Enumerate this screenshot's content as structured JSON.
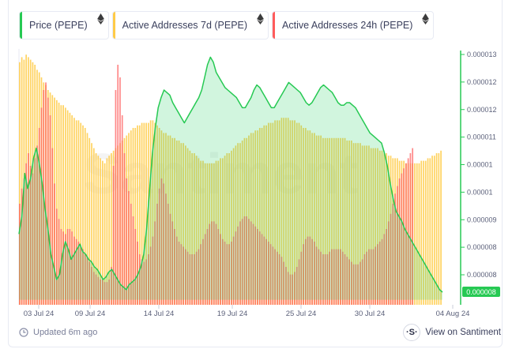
{
  "legend": [
    {
      "label": "Price (PEPE)",
      "color": "#26c953",
      "icon": "ethereum-icon"
    },
    {
      "label": "Active Addresses 7d (PEPE)",
      "color": "#ffcb47",
      "icon": "ethereum-icon"
    },
    {
      "label": "Active Addresses 24h (PEPE)",
      "color": "#ff5b5b",
      "icon": "ethereum-icon"
    }
  ],
  "watermark": "Santiment",
  "footer": {
    "updated": "Updated 6m ago",
    "view_label": "View on Santiment",
    "logo": "·S·"
  },
  "chart_data": {
    "type": "bar+line",
    "x_tick_labels": [
      "03 Jul 24",
      "09 Jul 24",
      "14 Jul 24",
      "19 Jul 24",
      "25 Jul 24",
      "30 Jul 24",
      "04 Aug 24"
    ],
    "y_tick_labels_price": [
      "0.000013",
      "0.000012",
      "0.000012",
      "0.000011",
      "0.00001",
      "0.00001",
      "0.000009",
      "0.000008",
      "0.000008"
    ],
    "current_price_label": "0.000008",
    "ylim_price": [
      7.7e-06,
      1.31e-05
    ],
    "active_addresses_7d_relative": [
      0.96,
      0.98,
      0.97,
      0.99,
      0.98,
      0.97,
      0.96,
      0.95,
      0.93,
      0.92,
      0.9,
      0.88,
      0.87,
      0.85,
      0.84,
      0.83,
      0.82,
      0.81,
      0.8,
      0.79,
      0.79,
      0.78,
      0.77,
      0.76,
      0.75,
      0.74,
      0.73,
      0.73,
      0.72,
      0.71,
      0.7,
      0.68,
      0.66,
      0.64,
      0.62,
      0.6,
      0.59,
      0.58,
      0.57,
      0.56,
      0.58,
      0.59,
      0.6,
      0.61,
      0.62,
      0.63,
      0.64,
      0.65,
      0.66,
      0.67,
      0.68,
      0.69,
      0.7,
      0.7,
      0.71,
      0.71,
      0.72,
      0.72,
      0.72,
      0.72,
      0.73,
      0.73,
      0.72,
      0.71,
      0.7,
      0.69,
      0.68,
      0.68,
      0.67,
      0.67,
      0.66,
      0.66,
      0.65,
      0.65,
      0.64,
      0.64,
      0.63,
      0.62,
      0.61,
      0.6,
      0.6,
      0.59,
      0.58,
      0.57,
      0.57,
      0.56,
      0.56,
      0.56,
      0.56,
      0.56,
      0.57,
      0.57,
      0.58,
      0.58,
      0.59,
      0.6,
      0.6,
      0.61,
      0.62,
      0.63,
      0.64,
      0.64,
      0.65,
      0.66,
      0.66,
      0.67,
      0.68,
      0.68,
      0.69,
      0.69,
      0.7,
      0.7,
      0.71,
      0.71,
      0.72,
      0.72,
      0.72,
      0.73,
      0.73,
      0.73,
      0.74,
      0.74,
      0.74,
      0.74,
      0.73,
      0.73,
      0.73,
      0.72,
      0.72,
      0.71,
      0.7,
      0.7,
      0.69,
      0.69,
      0.68,
      0.68,
      0.67,
      0.67,
      0.67,
      0.66,
      0.66,
      0.66,
      0.66,
      0.66,
      0.66,
      0.66,
      0.66,
      0.66,
      0.66,
      0.66,
      0.65,
      0.65,
      0.65,
      0.64,
      0.64,
      0.64,
      0.64,
      0.63,
      0.63,
      0.63,
      0.63,
      0.62,
      0.62,
      0.62,
      0.62,
      0.61,
      0.61,
      0.6,
      0.6,
      0.59,
      0.59,
      0.58,
      0.58,
      0.58,
      0.57,
      0.57,
      0.57,
      0.56,
      0.56,
      0.56,
      0.56,
      0.56,
      0.56,
      0.56,
      0.57,
      0.57,
      0.57,
      0.58,
      0.58,
      0.59,
      0.59,
      0.6,
      0.6,
      0.61
    ],
    "active_addresses_24h_relative": [
      0.4,
      0.46,
      0.5,
      0.56,
      0.6,
      0.55,
      0.52,
      0.58,
      0.63,
      0.7,
      0.78,
      0.85,
      0.88,
      0.82,
      0.75,
      0.62,
      0.48,
      0.38,
      0.34,
      0.3,
      0.29,
      0.28,
      0.3,
      0.3,
      0.29,
      0.27,
      0.26,
      0.25,
      0.23,
      0.22,
      0.2,
      0.19,
      0.17,
      0.15,
      0.13,
      0.12,
      0.11,
      0.1,
      0.1,
      0.09,
      0.09,
      0.1,
      0.15,
      0.55,
      0.85,
      0.95,
      0.9,
      0.75,
      0.6,
      0.5,
      0.45,
      0.4,
      0.35,
      0.3,
      0.25,
      0.2,
      0.18,
      0.17,
      0.18,
      0.2,
      0.23,
      0.27,
      0.33,
      0.4,
      0.46,
      0.5,
      0.48,
      0.44,
      0.4,
      0.36,
      0.33,
      0.3,
      0.27,
      0.25,
      0.24,
      0.23,
      0.22,
      0.21,
      0.2,
      0.2,
      0.2,
      0.21,
      0.22,
      0.24,
      0.26,
      0.28,
      0.3,
      0.32,
      0.33,
      0.33,
      0.32,
      0.3,
      0.28,
      0.26,
      0.25,
      0.24,
      0.24,
      0.25,
      0.27,
      0.29,
      0.31,
      0.33,
      0.34,
      0.35,
      0.35,
      0.34,
      0.33,
      0.32,
      0.31,
      0.3,
      0.29,
      0.28,
      0.27,
      0.26,
      0.25,
      0.24,
      0.23,
      0.22,
      0.21,
      0.2,
      0.19,
      0.17,
      0.15,
      0.13,
      0.12,
      0.12,
      0.13,
      0.15,
      0.18,
      0.21,
      0.24,
      0.26,
      0.27,
      0.27,
      0.26,
      0.25,
      0.23,
      0.22,
      0.21,
      0.2,
      0.2,
      0.2,
      0.21,
      0.22,
      0.22,
      0.22,
      0.22,
      0.22,
      0.21,
      0.2,
      0.19,
      0.18,
      0.17,
      0.16,
      0.16,
      0.16,
      0.17,
      0.18,
      0.2,
      0.21,
      0.22,
      0.22,
      0.22,
      0.23,
      0.24,
      0.25,
      0.26,
      0.28,
      0.3,
      0.33,
      0.36,
      0.4,
      0.44,
      0.47,
      0.5,
      0.52,
      0.54,
      0.56,
      0.58,
      0.6,
      0.62
    ],
    "price_line_relative": [
      0.28,
      0.35,
      0.52,
      0.46,
      0.5,
      0.58,
      0.62,
      0.56,
      0.48,
      0.38,
      0.3,
      0.2,
      0.15,
      0.1,
      0.12,
      0.2,
      0.25,
      0.22,
      0.18,
      0.2,
      0.22,
      0.24,
      0.21,
      0.2,
      0.18,
      0.17,
      0.15,
      0.14,
      0.12,
      0.1,
      0.11,
      0.13,
      0.14,
      0.12,
      0.1,
      0.08,
      0.07,
      0.06,
      0.08,
      0.09,
      0.1,
      0.12,
      0.15,
      0.2,
      0.3,
      0.45,
      0.6,
      0.7,
      0.78,
      0.82,
      0.85,
      0.84,
      0.83,
      0.8,
      0.78,
      0.76,
      0.74,
      0.72,
      0.74,
      0.76,
      0.78,
      0.8,
      0.82,
      0.85,
      0.9,
      0.95,
      0.98,
      0.96,
      0.92,
      0.9,
      0.88,
      0.86,
      0.85,
      0.84,
      0.83,
      0.82,
      0.8,
      0.78,
      0.78,
      0.8,
      0.82,
      0.85,
      0.87,
      0.86,
      0.84,
      0.82,
      0.8,
      0.78,
      0.78,
      0.8,
      0.82,
      0.84,
      0.86,
      0.88,
      0.87,
      0.86,
      0.85,
      0.84,
      0.82,
      0.8,
      0.79,
      0.8,
      0.82,
      0.84,
      0.86,
      0.87,
      0.86,
      0.85,
      0.84,
      0.82,
      0.8,
      0.79,
      0.79,
      0.8,
      0.8,
      0.79,
      0.78,
      0.76,
      0.74,
      0.72,
      0.7,
      0.68,
      0.67,
      0.66,
      0.65,
      0.64,
      0.6,
      0.55,
      0.48,
      0.42,
      0.37,
      0.35,
      0.33,
      0.3,
      0.28,
      0.26,
      0.24,
      0.22,
      0.2,
      0.18,
      0.16,
      0.14,
      0.12,
      0.1,
      0.08,
      0.06,
      0.05
    ]
  }
}
